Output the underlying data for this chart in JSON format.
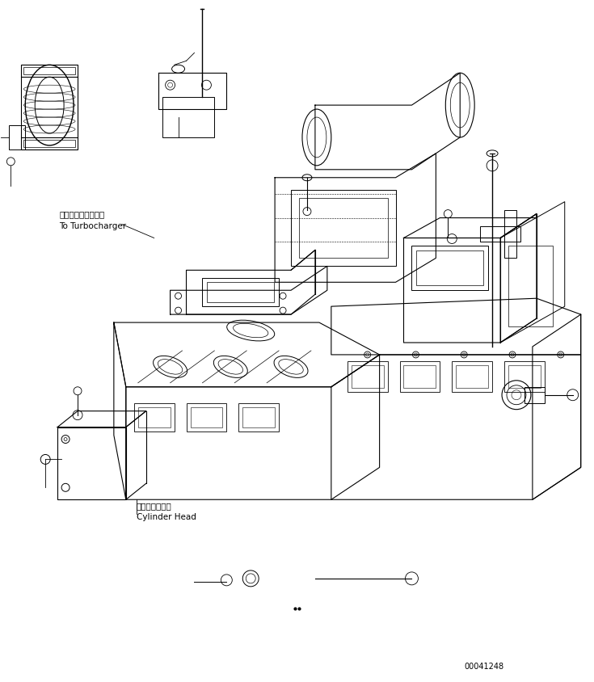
{
  "background_color": "#ffffff",
  "line_color": "#000000",
  "line_width": 0.8,
  "fig_width": 7.35,
  "fig_height": 8.45,
  "dpi": 100,
  "label_turbo_jp": "ターボチャージャヘ",
  "label_turbo_en": "To Turbocharger",
  "label_cylinder_jp": "シリンダヘッド",
  "label_cylinder_en": "Cylinder Head",
  "part_number": "00041248",
  "font_size_label": 7.5,
  "font_size_part": 7.0
}
